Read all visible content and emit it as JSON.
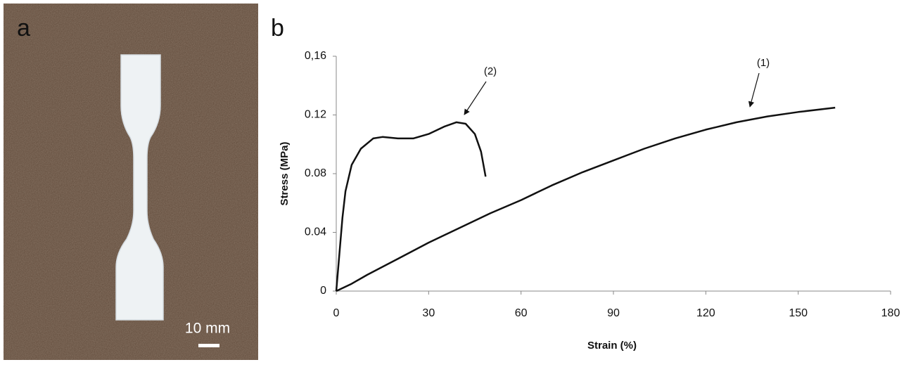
{
  "photo": {
    "label": "a",
    "scale_bar": "10 mm"
  },
  "chart_data": {
    "type": "line",
    "panel_label": "b",
    "xlabel": "Strain (%)",
    "ylabel": "Stress (MPa)",
    "xlim": [
      0,
      180
    ],
    "xticks": [
      0,
      30,
      60,
      90,
      120,
      150,
      180
    ],
    "ylim": [
      0,
      0.16
    ],
    "yticks": [
      0,
      0.04,
      0.08,
      0.12,
      {
        "value": 0.16,
        "label": "0,16"
      }
    ],
    "grid": false,
    "series": [
      {
        "name": "(1)",
        "color": "#111111",
        "x": [
          0,
          5,
          10,
          20,
          30,
          40,
          50,
          60,
          70,
          80,
          90,
          100,
          110,
          120,
          130,
          140,
          150,
          162
        ],
        "values": [
          0,
          0.005,
          0.011,
          0.022,
          0.033,
          0.043,
          0.053,
          0.062,
          0.072,
          0.081,
          0.089,
          0.097,
          0.104,
          0.11,
          0.115,
          0.119,
          0.122,
          0.125
        ]
      },
      {
        "name": "(2)",
        "color": "#111111",
        "x": [
          0,
          1,
          2,
          3,
          5,
          8,
          12,
          15,
          20,
          25,
          30,
          35,
          39,
          42,
          45,
          47,
          48.5
        ],
        "values": [
          0,
          0.025,
          0.05,
          0.068,
          0.086,
          0.097,
          0.104,
          0.105,
          0.104,
          0.104,
          0.107,
          0.112,
          0.115,
          0.114,
          0.107,
          0.095,
          0.078
        ]
      }
    ]
  }
}
